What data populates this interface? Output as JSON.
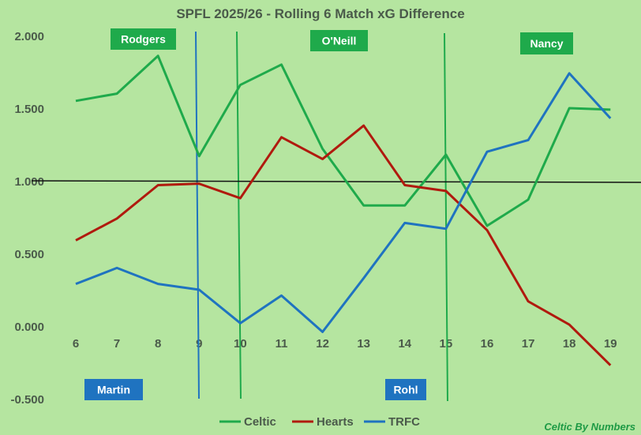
{
  "chart_data": {
    "type": "line",
    "title": "SPFL 2025/26 - Rolling 6 Match xG Difference",
    "x": [
      6,
      7,
      8,
      9,
      10,
      11,
      12,
      13,
      14,
      15,
      16,
      17,
      18,
      19
    ],
    "ylim": [
      -0.5,
      2.0
    ],
    "yticks": [
      "2.000",
      "1.500",
      "1.000",
      "0.500",
      "0.000",
      "-0.500"
    ],
    "grid": false,
    "legend_position": "bottom",
    "series": [
      {
        "name": "Celtic",
        "color": "#1faa4b",
        "values": [
          1.55,
          1.6,
          1.86,
          1.17,
          1.66,
          1.8,
          1.22,
          0.83,
          0.83,
          1.18,
          0.69,
          0.87,
          1.5,
          1.49
        ]
      },
      {
        "name": "Hearts",
        "color": "#b01a0e",
        "values": [
          0.59,
          0.74,
          0.97,
          0.98,
          0.88,
          1.3,
          1.15,
          1.38,
          0.97,
          0.93,
          0.66,
          0.17,
          0.01,
          -0.27
        ]
      },
      {
        "name": "TRFC",
        "color": "#1f73c0",
        "values": [
          0.29,
          0.4,
          0.29,
          0.25,
          0.02,
          0.21,
          -0.04,
          0.33,
          0.71,
          0.67,
          1.2,
          1.28,
          1.74,
          1.43
        ]
      }
    ],
    "reference_line": {
      "y": 1.0,
      "color": "#111111"
    },
    "markers": [
      {
        "label": "Rodgers",
        "x": 9,
        "team": "Celtic",
        "color": "#1faa4b"
      },
      {
        "label": "Martin",
        "x": 9,
        "team": "TRFC",
        "color": "#1f73c0"
      },
      {
        "label": "O'Neill",
        "x": 10,
        "team": "Celtic",
        "color": "#1faa4b"
      },
      {
        "label": "Rohl",
        "x": 15,
        "team": "TRFC",
        "color": "#1f73c0"
      },
      {
        "label": "Nancy",
        "x": 15,
        "team": "Celtic",
        "color": "#1faa4b"
      }
    ],
    "source": "Celtic By Numbers"
  }
}
